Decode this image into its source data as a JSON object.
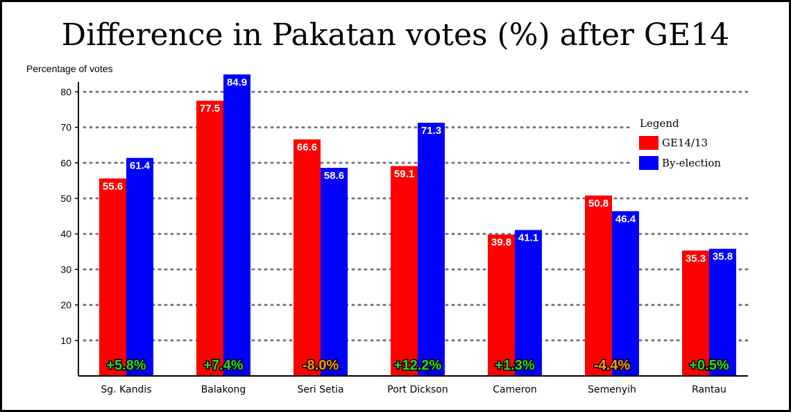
{
  "chart_data": {
    "type": "bar",
    "title": "Difference in Pakatan votes (%) after GE14",
    "ylabel": "Percentage of votes",
    "xlabel": "",
    "ylim": [
      0,
      85
    ],
    "yticks": [
      10,
      20,
      30,
      40,
      50,
      60,
      70,
      80
    ],
    "grid": true,
    "categories": [
      "Sg. Kandis",
      "Balakong",
      "Seri Setia",
      "Port Dickson",
      "Cameron",
      "Semenyih",
      "Rantau"
    ],
    "series": [
      {
        "name": "GE14/13",
        "color": "#ff0000",
        "values": [
          55.6,
          77.5,
          66.6,
          59.1,
          39.8,
          50.8,
          35.3
        ],
        "labels": [
          "55.6",
          "77.5",
          "66.6",
          "59.1",
          "39.8",
          "50.8",
          "35.3"
        ]
      },
      {
        "name": "By-election",
        "color": "#0000ff",
        "values": [
          61.4,
          84.9,
          58.6,
          71.3,
          41.1,
          46.4,
          35.8
        ],
        "labels": [
          "61.4",
          "84.9",
          "58.6",
          "71.3",
          "41.1",
          "46.4",
          "35.8"
        ]
      }
    ],
    "differences": [
      "+5.8%",
      "+7.4%",
      "-8.0%",
      "+12.2%",
      "+1.3%",
      "-4.4%",
      "+0.5%"
    ],
    "difference_colors": [
      "#22dd22",
      "#22dd22",
      "#ff9900",
      "#22dd22",
      "#22dd22",
      "#ff9900",
      "#22dd22"
    ],
    "legend": {
      "title": "Legend",
      "position": "top-right"
    }
  }
}
